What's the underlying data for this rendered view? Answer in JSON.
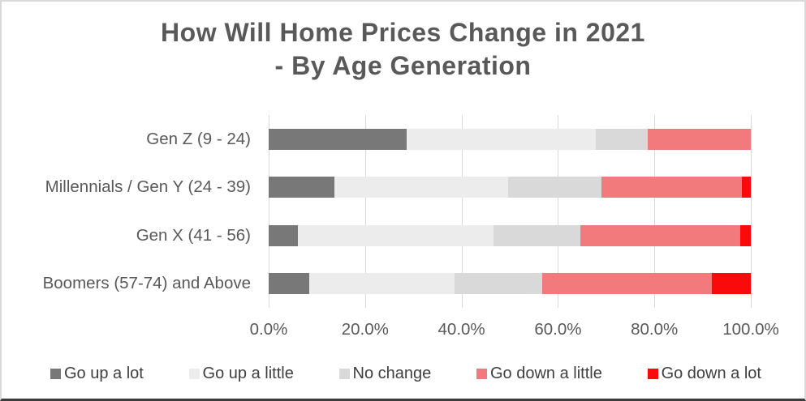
{
  "title": {
    "line1": "How Will Home Prices Change in 2021",
    "line2": "- By Age Generation"
  },
  "chart_data": {
    "type": "bar",
    "orientation": "horizontal",
    "stacked": true,
    "title": "How Will Home Prices Change in 2021 - By Age Generation",
    "categories": [
      "Gen Z (9 - 24)",
      "Millennials / Gen Y (24 - 39)",
      "Gen X (41 - 56)",
      "Boomers (57-74) and Above"
    ],
    "series": [
      {
        "name": "Go up a lot",
        "color": "#787878",
        "values": [
          28.6,
          13.6,
          6.1,
          8.4
        ]
      },
      {
        "name": "Go up a little",
        "color": "#ececec",
        "values": [
          39.3,
          36.0,
          40.6,
          30.2
        ]
      },
      {
        "name": "No change",
        "color": "#d9d9d9",
        "values": [
          10.7,
          19.5,
          18.0,
          18.2
        ]
      },
      {
        "name": "Go down a little",
        "color": "#f2797c",
        "values": [
          21.4,
          29.0,
          33.2,
          35.1
        ]
      },
      {
        "name": "Go down a lot",
        "color": "#fa0a0a",
        "values": [
          0.0,
          1.9,
          2.1,
          8.1
        ]
      }
    ],
    "x_ticks": [
      "0.0%",
      "20.0%",
      "40.0%",
      "60.0%",
      "80.0%",
      "100.0%"
    ],
    "xlim": [
      0,
      100
    ],
    "grid": "vertical-20pct",
    "gridline_color": "#d9d9d9",
    "legend_position": "bottom"
  },
  "colors": {
    "title_text": "#595959",
    "axis_text": "#595959",
    "legend_text": "#3f3f3f",
    "frame_border": "#d9d9d9",
    "bottom_rule": "#3b3b3b",
    "background": "#ffffff"
  }
}
